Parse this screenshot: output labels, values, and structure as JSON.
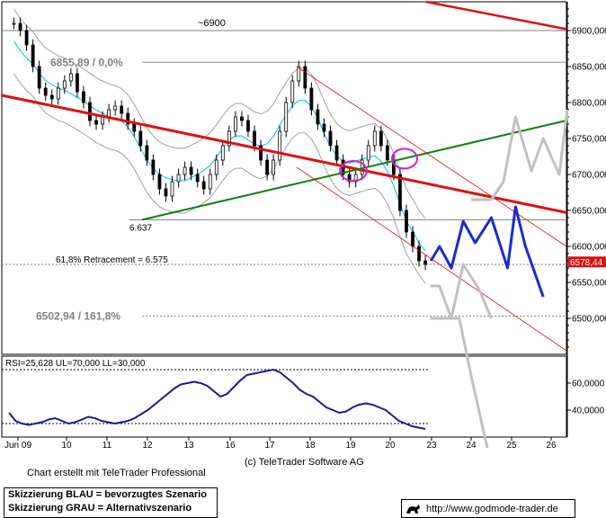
{
  "chart_data": [
    {
      "type": "line",
      "title": "",
      "xlabel": "",
      "ylabel": "",
      "x_ticks": [
        "Jun 09",
        "10",
        "11",
        "12",
        "13",
        "16",
        "17",
        "18",
        "19",
        "20",
        "23",
        "24",
        "25",
        "26"
      ],
      "ylim": [
        6450,
        6940
      ],
      "y_ticks": [
        "6500,000",
        "6550,000",
        "6600,000",
        "6650,000",
        "6700,000",
        "6750,000",
        "6800,000",
        "6850,000",
        "6900,000"
      ],
      "last_price_label": "6578,44",
      "annotations": {
        "level_6900": "~6900",
        "fib_top": "6855,89 / 0,0%",
        "low_label": "6.637",
        "retracement": "61,8% Retracement = 6.575",
        "fib_ext": "6502,94 / 161,8%"
      },
      "horizontal_levels": [
        6900,
        6855.89,
        6637,
        6575,
        6502.94
      ],
      "price_series": [
        6910,
        6900,
        6880,
        6850,
        6820,
        6810,
        6805,
        6820,
        6830,
        6840,
        6815,
        6800,
        6775,
        6770,
        6780,
        6790,
        6795,
        6785,
        6770,
        6760,
        6740,
        6720,
        6700,
        6680,
        6670,
        6690,
        6700,
        6710,
        6700,
        6690,
        6680,
        6700,
        6720,
        6740,
        6760,
        6780,
        6775,
        6760,
        6740,
        6720,
        6700,
        6720,
        6760,
        6800,
        6830,
        6850,
        6820,
        6790,
        6770,
        6760,
        6740,
        6720,
        6700,
        6690,
        6700,
        6720,
        6740,
        6760,
        6740,
        6720,
        6700,
        6650,
        6620,
        6600,
        6580,
        6575
      ],
      "price_x_range": [
        "Jun 09",
        "20"
      ],
      "blue_scenario": {
        "name": "Skizzierung BLAU = bevorzugtes Szenario",
        "x": [
          22.95,
          23.2,
          23.5,
          23.8,
          24.1,
          24.5,
          24.9,
          25.1,
          25.35,
          25.8
        ],
        "y": [
          6580,
          6600,
          6570,
          6635,
          6605,
          6640,
          6570,
          6655,
          6600,
          6530
        ]
      },
      "gray_scenario": {
        "name": "Skizzierung GRAU = Alternativszenario",
        "branch_up": {
          "x": [
            24.0,
            24.5,
            24.8,
            25.1,
            25.5,
            25.8,
            26.2,
            26.4
          ],
          "y": [
            6665,
            6665,
            6690,
            6780,
            6705,
            6750,
            6700,
            6790
          ]
        },
        "branch_down": {
          "x": [
            22.9,
            23.2,
            23.5,
            23.8,
            24.2,
            24.5
          ],
          "y": [
            6545,
            6545,
            6500,
            6575,
            6540,
            6500
          ]
        },
        "branch_deep": {
          "x": [
            22.9,
            23.3,
            23.7,
            24.0,
            24.4
          ],
          "y": [
            6500,
            6500,
            6500,
            6420,
            6320
          ]
        }
      }
    },
    {
      "type": "line",
      "title": "RSI=25,628 UL=70,000 LL=30,000",
      "ylim": [
        20,
        80
      ],
      "y_ticks": [
        "40,0000",
        "60,0000"
      ],
      "upper_level": 70,
      "lower_level": 30,
      "values": [
        38,
        32,
        30,
        29,
        30,
        31,
        33,
        34,
        32,
        30,
        31,
        33,
        35,
        34,
        32,
        31,
        30,
        31,
        32,
        34,
        37,
        40,
        44,
        48,
        52,
        56,
        59,
        60,
        61,
        60,
        58,
        54,
        50,
        52,
        57,
        62,
        66,
        67,
        68,
        69,
        70,
        68,
        64,
        60,
        55,
        52,
        50,
        46,
        42,
        40,
        38,
        39,
        42,
        44,
        45,
        44,
        42,
        40,
        36,
        32,
        30,
        28,
        27,
        26
      ],
      "last_value": 25.628
    }
  ],
  "footer": {
    "chart_credit": "Chart erstellt mit TeleTrader Professional",
    "copyright": "(c) TeleTrader Software AG",
    "legend_blue": "Skizzierung BLAU = bevorzugtes Szenario",
    "legend_gray": "Skizzierung GRAU = Alternativszenario",
    "url": "http://www.godmode-trader.de"
  },
  "colors": {
    "price": "#000000",
    "bands": "#a0a0a0",
    "sma": "#00bfe0",
    "trend_red": "#e01010",
    "trend_green": "#108010",
    "channel": "#e01010",
    "blue_scenario": "#1a2ad0",
    "gray_scenario": "#c0c0c0",
    "rsi": "#1a1a90",
    "circle": "#d020d0",
    "price_tag": "#e01010"
  }
}
